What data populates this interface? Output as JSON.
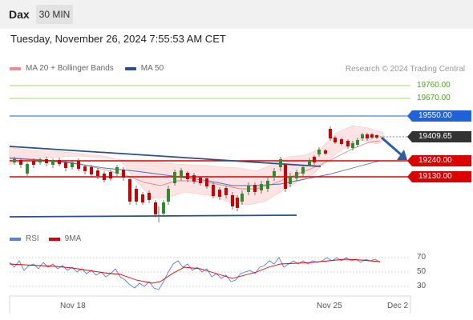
{
  "header": {
    "symbol": "Dax",
    "timeframe": "30 MIN"
  },
  "datetime": "Tuesday, November 26, 2024 7:55:53 AM CET",
  "legend": {
    "items": [
      {
        "label": "MA 20 + Bollinger Bands",
        "color": "#f28b8b"
      },
      {
        "label": "MA 50",
        "color": "#2a4f8a"
      }
    ],
    "credit": "Research © 2024 Trading Central"
  },
  "price_levels": {
    "r2": "19760.00",
    "r1": "19670.00",
    "pivot": "19550.00",
    "last": "19409.65",
    "s1": "19240.00",
    "s2": "19130.00"
  },
  "rsi_legend": {
    "items": [
      {
        "label": "RSI",
        "color": "#5a7fe0"
      },
      {
        "label": "9MA",
        "color": "#dd0000"
      }
    ],
    "levels": [
      "70",
      "50",
      "30"
    ]
  },
  "x_axis": {
    "labels": [
      "Nov 18",
      "Nov 25",
      "Dec 2"
    ]
  },
  "colors": {
    "support": "#dd0000",
    "resistance": "#1f63d8",
    "target": "#8cc63f",
    "trendline": "#2a4f8a",
    "arrow": "#2a5da8",
    "candle_up": "#2e8b2e",
    "candle_down": "#cc0000"
  }
}
